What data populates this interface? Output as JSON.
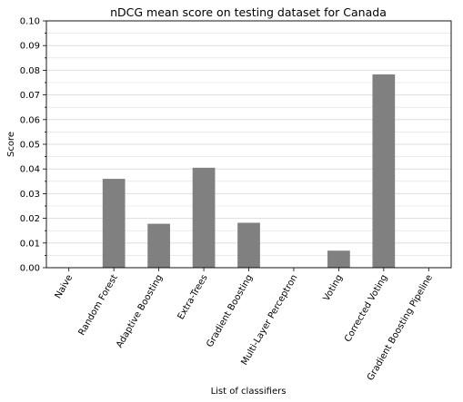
{
  "chart_data": {
    "type": "bar",
    "title": "nDCG mean score on testing dataset for Canada",
    "xlabel": "List of classifiers",
    "ylabel": "Score",
    "ylim": [
      0,
      0.1
    ],
    "yticks": [
      "0.00",
      "0.01",
      "0.02",
      "0.03",
      "0.04",
      "0.05",
      "0.06",
      "0.07",
      "0.08",
      "0.09",
      "0.10"
    ],
    "grid": "horizontal",
    "categories": [
      "Naive",
      "Random Forest",
      "Adaptive Boosting",
      "Extra-Trees",
      "Gradient Boosting",
      "Multi-Layer Perceptron",
      "Voting",
      "Corrected Voting",
      "Gradient Boosting Pipeline"
    ],
    "values": [
      0.0,
      0.036,
      0.0178,
      0.0405,
      0.0182,
      0.0,
      0.0069,
      0.0783,
      0.0
    ],
    "colors": {
      "bar": "#808080",
      "grid": "#dddddd",
      "axis": "#000000"
    }
  }
}
